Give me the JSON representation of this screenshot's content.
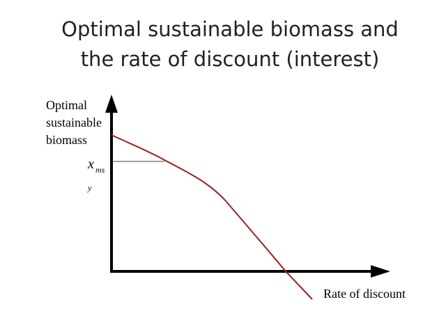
{
  "title": {
    "lines": [
      "Optimal sustainable biomass and",
      "the rate of discount (interest)"
    ]
  },
  "y_axis_label": {
    "lines": [
      "Optimal",
      "sustainable",
      "biomass"
    ]
  },
  "x_axis_label": "Rate of discount",
  "marker_label": {
    "symbol": "x",
    "subscript": [
      "ms",
      "y"
    ]
  }
}
